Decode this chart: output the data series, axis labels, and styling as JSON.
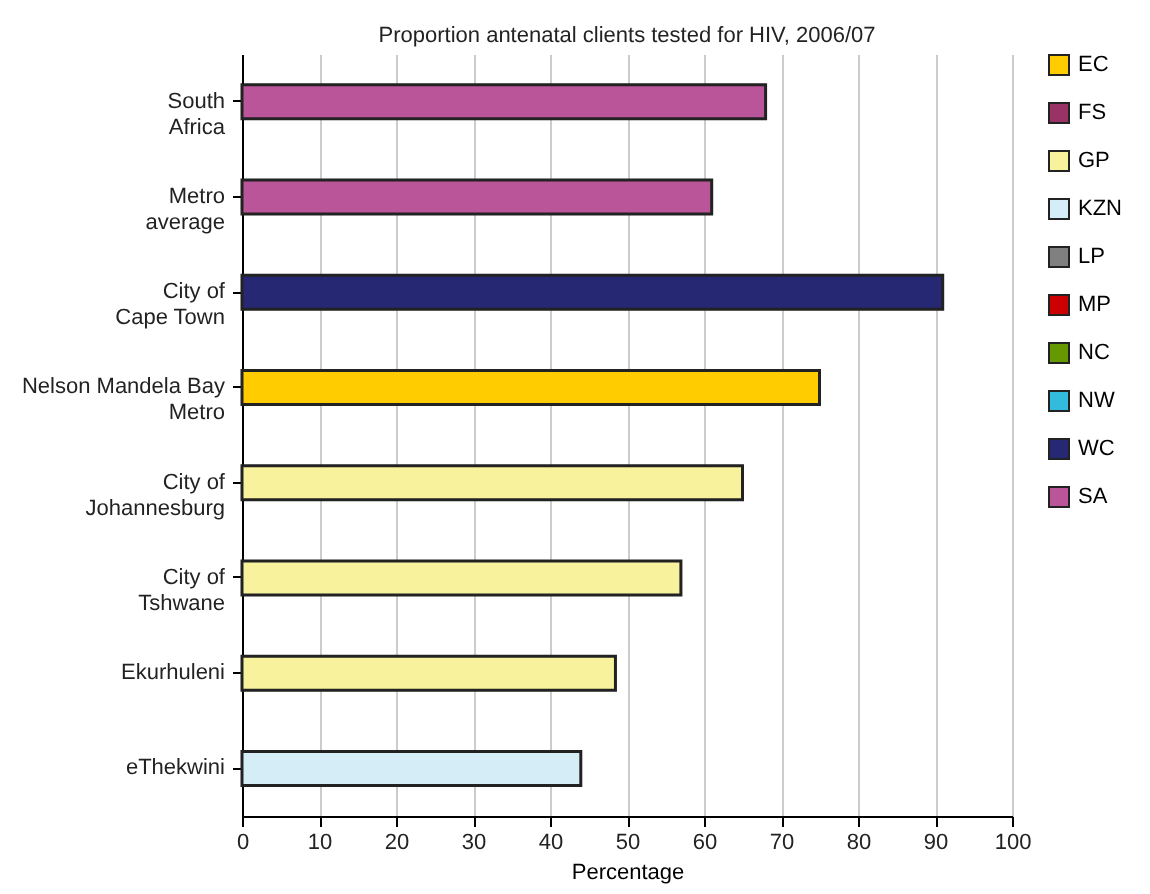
{
  "chart_data": {
    "type": "bar",
    "orientation": "horizontal",
    "title": "Proportion antenatal clients tested for HIV, 2006/07",
    "xlabel": "Percentage",
    "categories": [
      "South\nAfrica",
      "Metro\naverage",
      "City of\nCape Town",
      "Nelson Mandela Bay\nMetro",
      "City of\nJohannesburg",
      "City of\nTshwane",
      "Ekurhuleni",
      "eThekwini"
    ],
    "series": [
      {
        "name": "EC",
        "color": "#ffcc00",
        "values": [
          null,
          null,
          null,
          75,
          null,
          null,
          null,
          null
        ]
      },
      {
        "name": "FS",
        "color": "#993366",
        "values": [
          null,
          null,
          null,
          null,
          null,
          null,
          null,
          null
        ]
      },
      {
        "name": "GP",
        "color": "#f8f29c",
        "values": [
          null,
          null,
          null,
          null,
          65,
          57,
          48.5,
          null
        ]
      },
      {
        "name": "KZN",
        "color": "#d4edf6",
        "values": [
          null,
          null,
          null,
          null,
          null,
          null,
          null,
          44
        ]
      },
      {
        "name": "LP",
        "color": "#808080",
        "values": [
          null,
          null,
          null,
          null,
          null,
          null,
          null,
          null
        ]
      },
      {
        "name": "MP",
        "color": "#cc0000",
        "values": [
          null,
          null,
          null,
          null,
          null,
          null,
          null,
          null
        ]
      },
      {
        "name": "NC",
        "color": "#669900",
        "values": [
          null,
          null,
          null,
          null,
          null,
          null,
          null,
          null
        ]
      },
      {
        "name": "NW",
        "color": "#33bbdd",
        "values": [
          null,
          null,
          null,
          null,
          null,
          null,
          null,
          null
        ]
      },
      {
        "name": "WC",
        "color": "#262873",
        "values": [
          null,
          null,
          91,
          null,
          null,
          null,
          null,
          null
        ]
      },
      {
        "name": "SA",
        "color": "#bb5599",
        "values": [
          68,
          61,
          null,
          null,
          null,
          null,
          null,
          null
        ]
      }
    ],
    "xlim": [
      0,
      100
    ],
    "xticks": [
      0,
      10,
      20,
      30,
      40,
      50,
      60,
      70,
      80,
      90,
      100
    ],
    "grid": "x",
    "legend": "right"
  }
}
